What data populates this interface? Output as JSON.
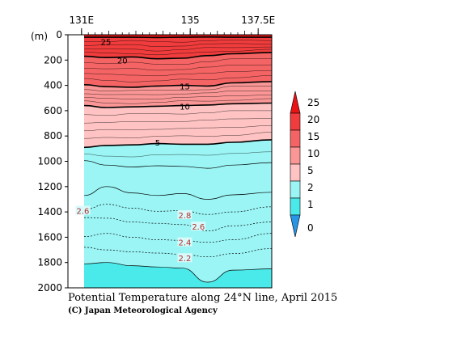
{
  "chart_data": {
    "type": "heatmap",
    "title": "Potential Temperature along 24°N line, April 2015",
    "credit": "(C) Japan Meteorological Agency",
    "ylabel": "(m)",
    "x_ticks": [
      {
        "value": 131,
        "label": "131E"
      },
      {
        "value": 135,
        "label": "135"
      },
      {
        "value": 137.5,
        "label": "137.5E"
      }
    ],
    "xlim": [
      130.5,
      138
    ],
    "data_xlim": [
      131,
      137.5
    ],
    "y_ticks": [
      0,
      200,
      400,
      600,
      800,
      1000,
      1200,
      1400,
      1600,
      1800,
      2000
    ],
    "ylim": [
      0,
      2000
    ],
    "ylim_reversed": true,
    "legend_levels": [
      "25",
      "20",
      "15",
      "10",
      "5",
      "2",
      "1",
      "0"
    ],
    "legend_colors": [
      "#e81414",
      "#f03c3c",
      "#f56464",
      "#fa9696",
      "#ffc3c3",
      "#9bf5f5",
      "#4beaea",
      "#2896e6"
    ],
    "color_bands": [
      {
        "label": "above 25",
        "color": "#e81414"
      },
      {
        "label": "20 to 25",
        "color": "#f03c3c"
      },
      {
        "label": "15 to 20",
        "color": "#f56464"
      },
      {
        "label": "10 to 15",
        "color": "#fa9696"
      },
      {
        "label": "5 to 10",
        "color": "#ffc3c3"
      },
      {
        "label": "2 to 5",
        "color": "#9bf5f5"
      },
      {
        "label": "1 to 2",
        "color": "#4beaea"
      }
    ],
    "labeled_contours": [
      {
        "value": 25,
        "label": "25",
        "lon": 131.9,
        "depth": 55
      },
      {
        "value": 20,
        "label": "20",
        "lon": 132.5,
        "depth": 200
      },
      {
        "value": 15,
        "label": "15",
        "lon": 134.8,
        "depth": 405
      },
      {
        "value": 10,
        "label": "10",
        "lon": 134.8,
        "depth": 565
      },
      {
        "value": 5,
        "label": "5",
        "lon": 133.8,
        "depth": 850
      },
      {
        "value": 2.6,
        "label": "2.6",
        "lon": 131.05,
        "depth": 1390
      },
      {
        "value": 2.8,
        "label": "2.8",
        "lon": 134.8,
        "depth": 1425
      },
      {
        "value": 2.6,
        "label": "2.6",
        "lon": 135.3,
        "depth": 1515
      },
      {
        "value": 2.4,
        "label": "2.4",
        "lon": 134.8,
        "depth": 1640
      },
      {
        "value": 2.2,
        "label": "2.2",
        "lon": 134.8,
        "depth": 1765
      }
    ],
    "isotherms_heavy": [
      {
        "value": 25,
        "depths": [
          20,
          20,
          20,
          22,
          20,
          18,
          20,
          20
        ]
      },
      {
        "value": 20,
        "depths": [
          170,
          180,
          175,
          190,
          185,
          165,
          150,
          140
        ]
      },
      {
        "value": 15,
        "depths": [
          395,
          410,
          415,
          405,
          400,
          405,
          380,
          370
        ]
      },
      {
        "value": 10,
        "depths": [
          560,
          575,
          570,
          565,
          560,
          555,
          545,
          540
        ]
      },
      {
        "value": 5,
        "depths": [
          890,
          875,
          870,
          860,
          865,
          865,
          850,
          830
        ]
      }
    ],
    "isotherms_solid": [
      {
        "value": 4,
        "depths": [
          995,
          1030,
          1045,
          1035,
          1040,
          1055,
          1030,
          1010
        ]
      },
      {
        "value": 3,
        "depths": [
          1270,
          1200,
          1250,
          1270,
          1255,
          1300,
          1265,
          1245
        ]
      },
      {
        "value": 1.8,
        "depths": [
          1810,
          1800,
          1825,
          1835,
          1845,
          1955,
          1860,
          1850
        ]
      }
    ],
    "isotherms_dashed": [
      {
        "value": 2.8,
        "depths": [
          1380,
          1340,
          1370,
          1395,
          1390,
          1420,
          1400,
          1360
        ]
      },
      {
        "value": 2.6,
        "depths": [
          1445,
          1450,
          1480,
          1490,
          1500,
          1550,
          1510,
          1480
        ]
      },
      {
        "value": 2.4,
        "depths": [
          1595,
          1570,
          1600,
          1620,
          1625,
          1640,
          1620,
          1570
        ]
      },
      {
        "value": 2.2,
        "depths": [
          1680,
          1700,
          1715,
          1725,
          1735,
          1755,
          1730,
          1690
        ]
      }
    ],
    "profile_lons": [
      131,
      131.93,
      132.86,
      133.79,
      134.71,
      135.64,
      136.57,
      137.5
    ]
  }
}
